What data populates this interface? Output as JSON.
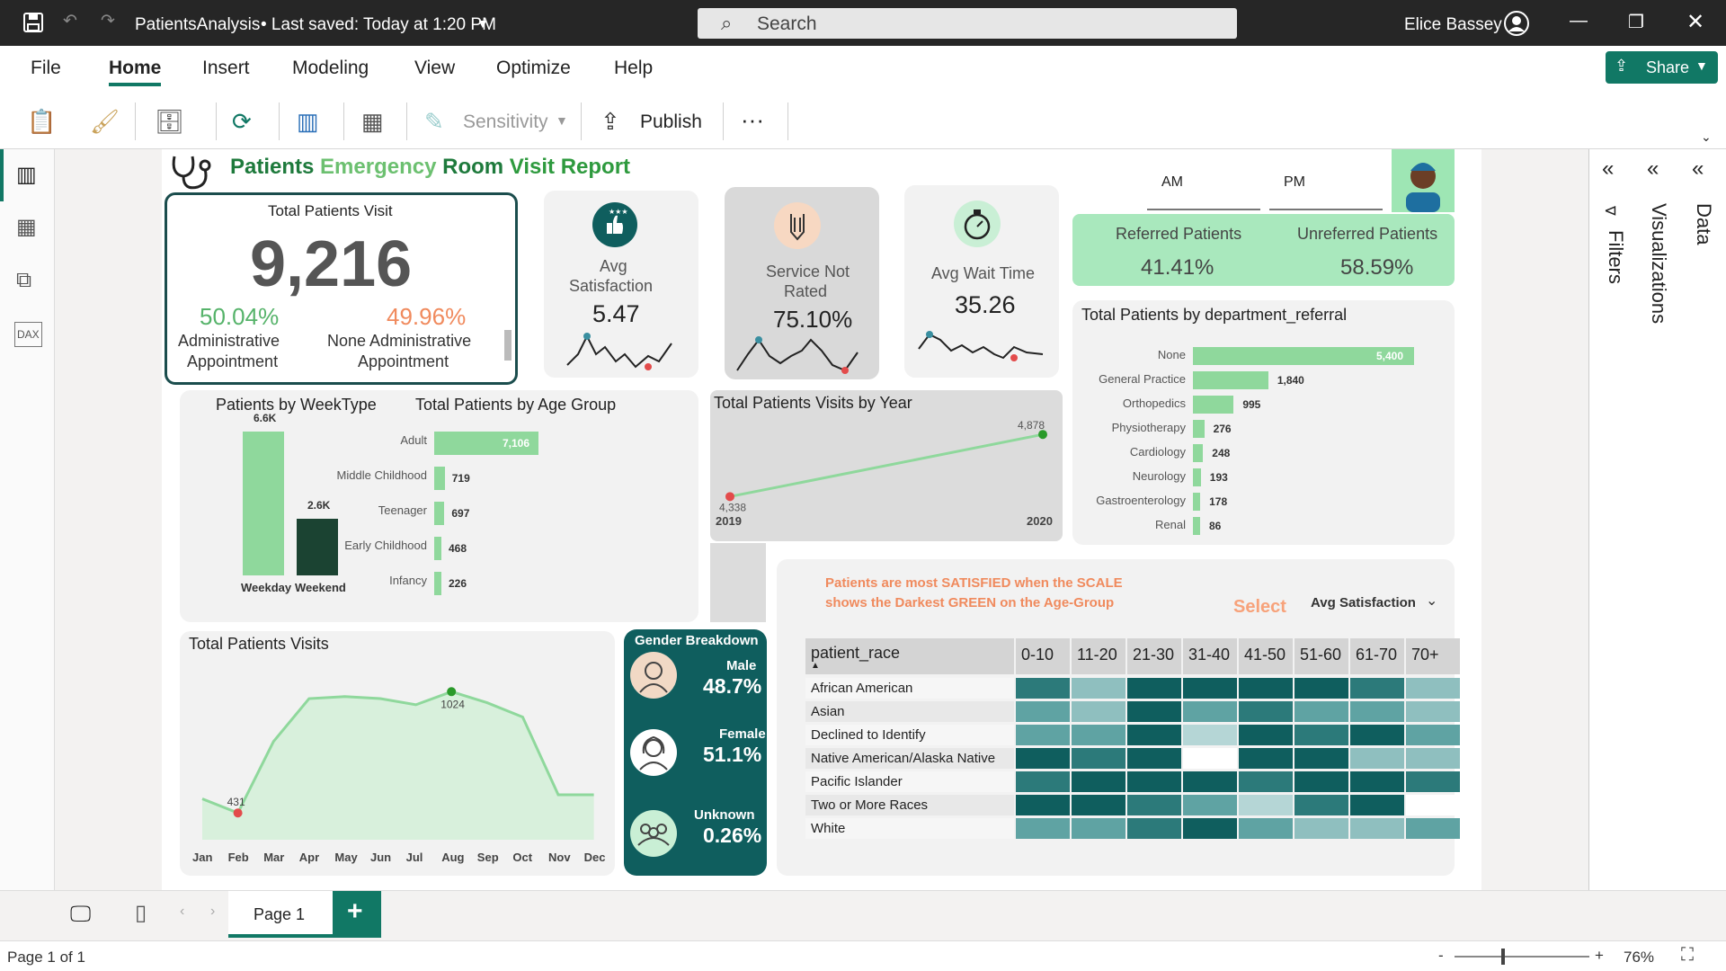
{
  "titlebar": {
    "file_name": "PatientsAnalysis",
    "saved": "• Last saved: Today at 1:20 PM",
    "search_placeholder": "Search",
    "user": "Elice Bassey"
  },
  "menu": {
    "file": "File",
    "home": "Home",
    "insert": "Insert",
    "modeling": "Modeling",
    "view": "View",
    "optimize": "Optimize",
    "help": "Help",
    "share": "Share"
  },
  "toolbar": {
    "sensitivity": "Sensitivity",
    "publish": "Publish",
    "more": "···"
  },
  "report": {
    "title": [
      {
        "t": "Patients",
        "c": "#1e7a3c"
      },
      {
        "t": "Emergency",
        "c": "#6cc070"
      },
      {
        "t": "Room",
        "c": "#1e7a3c"
      },
      {
        "t": "Visit Report",
        "c": "#2e9a3e"
      }
    ],
    "total_visit": {
      "title": "Total Patients Visit",
      "value": "9,216",
      "admin_pct": "50.04%",
      "admin_label_1": "Administrative",
      "admin_label_2": "Appointment",
      "nonadmin_pct": "49.96%",
      "nonadmin_label_1": "None Administrative",
      "nonadmin_label_2": "Appointment"
    },
    "avg_satisfaction": {
      "label_1": "Avg",
      "label_2": "Satisfaction",
      "value": "5.47"
    },
    "service_not_rated": {
      "label_1": "Service Not",
      "label_2": "Rated",
      "value": "75.10%"
    },
    "avg_wait": {
      "label": "Avg Wait Time",
      "value": "35.26"
    },
    "am": "AM",
    "pm": "PM",
    "referred": {
      "label": "Referred Patients",
      "value": "41.41%"
    },
    "unreferred": {
      "label": "Unreferred Patients",
      "value": "58.59%"
    },
    "insight": {
      "line1": "Patients are most SATISFIED when the SCALE",
      "line2": "shows the Darkest GREEN on the Age-Group",
      "select": "Select",
      "dropdown": "Avg Satisfaction"
    },
    "gender": {
      "title": "Gender Breakdown",
      "male_label": "Male",
      "male_value": "48.7%",
      "female_label": "Female",
      "female_value": "51.1%",
      "unknown_label": "Unknown",
      "unknown_value": "0.26%"
    }
  },
  "colors": {
    "accent_green": "#8fd89c",
    "dark_green": "#1b4332",
    "teal": "#0f5e5e",
    "orange": "#f08a5d"
  },
  "chart_data": [
    {
      "type": "bar",
      "title": "Patients by WeekType",
      "categories": [
        "Weekday",
        "Weekend"
      ],
      "values": [
        6.6,
        2.6
      ],
      "value_labels": [
        "6.6K",
        "2.6K"
      ],
      "unit": "K"
    },
    {
      "type": "bar",
      "orientation": "horizontal",
      "title": "Total Patients by Age Group",
      "categories": [
        "Adult",
        "Middle Childhood",
        "Teenager",
        "Early Childhood",
        "Infancy"
      ],
      "values": [
        7106,
        719,
        697,
        468,
        226
      ],
      "value_labels": [
        "7,106",
        "719",
        "697",
        "468",
        "226"
      ]
    },
    {
      "type": "line",
      "title": "Total Patients Visits by Year",
      "x": [
        "2019",
        "2020"
      ],
      "values": [
        4338,
        4878
      ],
      "value_labels": [
        "4,338",
        "4,878"
      ]
    },
    {
      "type": "bar",
      "orientation": "horizontal",
      "title": "Total Patients by department_referral",
      "categories": [
        "None",
        "General Practice",
        "Orthopedics",
        "Physiotherapy",
        "Cardiology",
        "Neurology",
        "Gastroenterology",
        "Renal"
      ],
      "values": [
        5400,
        1840,
        995,
        276,
        248,
        193,
        178,
        86
      ],
      "value_labels": [
        "5,400",
        "1,840",
        "995",
        "276",
        "248",
        "193",
        "178",
        "86"
      ]
    },
    {
      "type": "area",
      "title": "Total Patients Visits",
      "x": [
        "Jan",
        "Feb",
        "Mar",
        "Apr",
        "May",
        "Jun",
        "Jul",
        "Aug",
        "Sep",
        "Oct",
        "Nov",
        "Dec"
      ],
      "values": [
        500,
        431,
        780,
        990,
        1000,
        990,
        960,
        1024,
        970,
        900,
        520,
        520
      ],
      "value_labels": {
        "Feb": "431",
        "Aug": "1024"
      }
    },
    {
      "type": "heatmap",
      "header": "patient_race",
      "columns": [
        "0-10",
        "11-20",
        "21-30",
        "31-40",
        "41-50",
        "51-60",
        "61-70",
        "70+"
      ],
      "rows": [
        "African American",
        "Asian",
        "Declined to Identify",
        "Native American/Alaska Native",
        "Pacific Islander",
        "Two or More Races",
        "White"
      ],
      "values": [
        [
          4,
          2,
          5,
          5,
          5,
          5,
          4,
          2
        ],
        [
          3,
          2,
          5,
          3,
          4,
          3,
          3,
          2
        ],
        [
          3,
          3,
          5,
          1,
          5,
          4,
          5,
          3
        ],
        [
          5,
          4,
          5,
          0,
          5,
          5,
          2,
          2
        ],
        [
          4,
          5,
          5,
          5,
          4,
          5,
          5,
          4
        ],
        [
          5,
          5,
          4,
          3,
          1,
          4,
          5,
          0
        ],
        [
          3,
          3,
          4,
          5,
          3,
          2,
          2,
          3
        ]
      ]
    }
  ]
}
